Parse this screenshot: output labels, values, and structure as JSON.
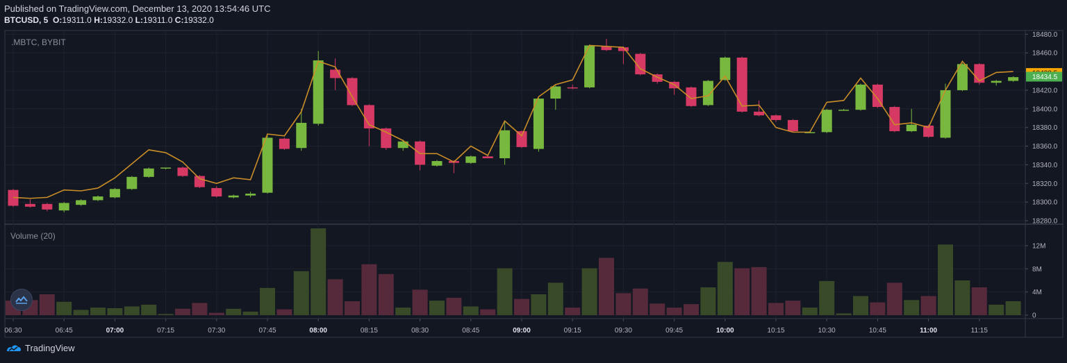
{
  "header": {
    "published": "Published on TradingView.com, December 13, 2020 13:54:46 UTC",
    "symbol": "BTCUSD, 5",
    "o_label": "O:",
    "o_value": "19311.0",
    "h_label": "H:",
    "h_value": "19332.0",
    "l_label": "L:",
    "l_value": "19311.0",
    "c_label": "C:",
    "c_value": "19332.0"
  },
  "chart_data": {
    "type": "candlestick",
    "pane_label": ".MBTC, BYBIT",
    "volume_label": "Volume (20)",
    "price_axis_ticks": [
      "18280.0",
      "18300.0",
      "18320.0",
      "18340.0",
      "18360.0",
      "18380.0",
      "18400.0",
      "18420.0",
      "18440.0",
      "18460.0",
      "18480.0"
    ],
    "price_ylim": [
      18277,
      18484
    ],
    "volume_axis_ticks": [
      "0",
      "4M",
      "8M",
      "12M"
    ],
    "volume_ylim": [
      0,
      15
    ],
    "price_badges": [
      {
        "value": 18438.5,
        "label": "18438.5",
        "color": "#f7a600"
      },
      {
        "value": 18434.5,
        "label": "18434.5",
        "color": "#4caf50"
      }
    ],
    "time_ticks": [
      {
        "index": 0,
        "label": "06:30",
        "bold": false
      },
      {
        "index": 3,
        "label": "06:45",
        "bold": false
      },
      {
        "index": 6,
        "label": "07:00",
        "bold": true
      },
      {
        "index": 9,
        "label": "07:15",
        "bold": false
      },
      {
        "index": 12,
        "label": "07:30",
        "bold": false
      },
      {
        "index": 15,
        "label": "07:45",
        "bold": false
      },
      {
        "index": 18,
        "label": "08:00",
        "bold": true
      },
      {
        "index": 21,
        "label": "08:15",
        "bold": false
      },
      {
        "index": 24,
        "label": "08:30",
        "bold": false
      },
      {
        "index": 27,
        "label": "08:45",
        "bold": false
      },
      {
        "index": 30,
        "label": "09:00",
        "bold": true
      },
      {
        "index": 33,
        "label": "09:15",
        "bold": false
      },
      {
        "index": 36,
        "label": "09:30",
        "bold": false
      },
      {
        "index": 39,
        "label": "09:45",
        "bold": false
      },
      {
        "index": 42,
        "label": "10:00",
        "bold": true
      },
      {
        "index": 45,
        "label": "10:15",
        "bold": false
      },
      {
        "index": 48,
        "label": "10:30",
        "bold": false
      },
      {
        "index": 51,
        "label": "10:45",
        "bold": false
      },
      {
        "index": 54,
        "label": "11:00",
        "bold": true
      },
      {
        "index": 57,
        "label": "11:15",
        "bold": false
      }
    ],
    "candles": [
      {
        "o": 18313,
        "h": 18314,
        "l": 18295,
        "c": 18296
      },
      {
        "o": 18298,
        "h": 18303,
        "l": 18294,
        "c": 18295
      },
      {
        "o": 18298,
        "h": 18299,
        "l": 18290,
        "c": 18292
      },
      {
        "o": 18291,
        "h": 18300,
        "l": 18289,
        "c": 18299
      },
      {
        "o": 18297,
        "h": 18303,
        "l": 18296,
        "c": 18302
      },
      {
        "o": 18302,
        "h": 18307,
        "l": 18301,
        "c": 18306
      },
      {
        "o": 18305,
        "h": 18315,
        "l": 18304,
        "c": 18314
      },
      {
        "o": 18314,
        "h": 18328,
        "l": 18313,
        "c": 18327
      },
      {
        "o": 18327,
        "h": 18337,
        "l": 18326,
        "c": 18336
      },
      {
        "o": 18336,
        "h": 18337,
        "l": 18335,
        "c": 18337
      },
      {
        "o": 18337,
        "h": 18338,
        "l": 18327,
        "c": 18328
      },
      {
        "o": 18328,
        "h": 18329,
        "l": 18315,
        "c": 18316
      },
      {
        "o": 18315,
        "h": 18317,
        "l": 18305,
        "c": 18306
      },
      {
        "o": 18305,
        "h": 18308,
        "l": 18304,
        "c": 18307
      },
      {
        "o": 18307,
        "h": 18311,
        "l": 18305,
        "c": 18309
      },
      {
        "o": 18310,
        "h": 18372,
        "l": 18309,
        "c": 18369
      },
      {
        "o": 18368,
        "h": 18369,
        "l": 18356,
        "c": 18357
      },
      {
        "o": 18358,
        "h": 18400,
        "l": 18355,
        "c": 18385
      },
      {
        "o": 18384,
        "h": 18462,
        "l": 18382,
        "c": 18452
      },
      {
        "o": 18442,
        "h": 18454,
        "l": 18420,
        "c": 18433
      },
      {
        "o": 18433,
        "h": 18434,
        "l": 18403,
        "c": 18404
      },
      {
        "o": 18404,
        "h": 18405,
        "l": 18360,
        "c": 18379
      },
      {
        "o": 18379,
        "h": 18380,
        "l": 18356,
        "c": 18358
      },
      {
        "o": 18358,
        "h": 18367,
        "l": 18355,
        "c": 18365
      },
      {
        "o": 18365,
        "h": 18366,
        "l": 18334,
        "c": 18340
      },
      {
        "o": 18339,
        "h": 18345,
        "l": 18338,
        "c": 18344
      },
      {
        "o": 18344,
        "h": 18345,
        "l": 18331,
        "c": 18342
      },
      {
        "o": 18342,
        "h": 18350,
        "l": 18341,
        "c": 18349
      },
      {
        "o": 18349,
        "h": 18350,
        "l": 18347,
        "c": 18347
      },
      {
        "o": 18347,
        "h": 18387,
        "l": 18340,
        "c": 18377
      },
      {
        "o": 18376,
        "h": 18377,
        "l": 18358,
        "c": 18359
      },
      {
        "o": 18357,
        "h": 18412,
        "l": 18354,
        "c": 18411
      },
      {
        "o": 18411,
        "h": 18425,
        "l": 18399,
        "c": 18424
      },
      {
        "o": 18423,
        "h": 18426,
        "l": 18421,
        "c": 18422
      },
      {
        "o": 18423,
        "h": 18469,
        "l": 18422,
        "c": 18468
      },
      {
        "o": 18467,
        "h": 18475,
        "l": 18462,
        "c": 18463
      },
      {
        "o": 18466,
        "h": 18467,
        "l": 18448,
        "c": 18462
      },
      {
        "o": 18459,
        "h": 18460,
        "l": 18436,
        "c": 18437
      },
      {
        "o": 18437,
        "h": 18438,
        "l": 18427,
        "c": 18429
      },
      {
        "o": 18429,
        "h": 18430,
        "l": 18415,
        "c": 18422
      },
      {
        "o": 18423,
        "h": 18424,
        "l": 18402,
        "c": 18403
      },
      {
        "o": 18404,
        "h": 18431,
        "l": 18403,
        "c": 18430
      },
      {
        "o": 18431,
        "h": 18456,
        "l": 18430,
        "c": 18455
      },
      {
        "o": 18455,
        "h": 18456,
        "l": 18396,
        "c": 18397
      },
      {
        "o": 18397,
        "h": 18409,
        "l": 18392,
        "c": 18393
      },
      {
        "o": 18393,
        "h": 18394,
        "l": 18386,
        "c": 18388
      },
      {
        "o": 18388,
        "h": 18389,
        "l": 18375,
        "c": 18376
      },
      {
        "o": 18375,
        "h": 18376,
        "l": 18374,
        "c": 18375
      },
      {
        "o": 18375,
        "h": 18400,
        "l": 18374,
        "c": 18399
      },
      {
        "o": 18399,
        "h": 18400,
        "l": 18398,
        "c": 18399
      },
      {
        "o": 18399,
        "h": 18427,
        "l": 18398,
        "c": 18426
      },
      {
        "o": 18426,
        "h": 18427,
        "l": 18401,
        "c": 18402
      },
      {
        "o": 18402,
        "h": 18403,
        "l": 18375,
        "c": 18376
      },
      {
        "o": 18376,
        "h": 18400,
        "l": 18375,
        "c": 18383
      },
      {
        "o": 18382,
        "h": 18383,
        "l": 18369,
        "c": 18370
      },
      {
        "o": 18369,
        "h": 18427,
        "l": 18368,
        "c": 18420
      },
      {
        "o": 18420,
        "h": 18449,
        "l": 18419,
        "c": 18448
      },
      {
        "o": 18448,
        "h": 18449,
        "l": 18426,
        "c": 18428
      },
      {
        "o": 18428,
        "h": 18431,
        "l": 18425,
        "c": 18430
      },
      {
        "o": 18430,
        "h": 18435,
        "l": 18429,
        "c": 18434
      }
    ],
    "volume": [
      2.5,
      2.6,
      3.6,
      2.3,
      0.9,
      1.3,
      1.2,
      1.5,
      1.8,
      0.2,
      1.1,
      2.1,
      0.4,
      1.1,
      0.6,
      4.7,
      1.0,
      7.6,
      15.0,
      6.2,
      2.4,
      8.8,
      7.1,
      1.3,
      4.4,
      2.5,
      3.0,
      1.5,
      1.0,
      8.1,
      2.8,
      3.6,
      5.6,
      1.3,
      8.1,
      9.9,
      3.8,
      4.6,
      2.0,
      1.3,
      1.9,
      4.8,
      9.2,
      8.1,
      8.3,
      2.1,
      2.5,
      1.3,
      5.9,
      0.3,
      3.3,
      2.2,
      5.6,
      2.6,
      3.3,
      12.2,
      6.0,
      4.8,
      1.8,
      2.4
    ],
    "ema": [
      18305,
      18304,
      18305,
      18313,
      18312,
      18315,
      18326,
      18341,
      18356,
      18353,
      18343,
      18325,
      18320,
      18326,
      18324,
      18373,
      18371,
      18397,
      18451,
      18445,
      18413,
      18383,
      18375,
      18366,
      18352,
      18352,
      18343,
      18360,
      18350,
      18387,
      18371,
      18413,
      18426,
      18431,
      18468,
      18467,
      18466,
      18443,
      18434,
      18426,
      18411,
      18414,
      18435,
      18403,
      18404,
      18380,
      18375,
      18375,
      18407,
      18409,
      18433,
      18411,
      18383,
      18385,
      18380,
      18420,
      18451,
      18430,
      18439,
      18440
    ]
  }
}
